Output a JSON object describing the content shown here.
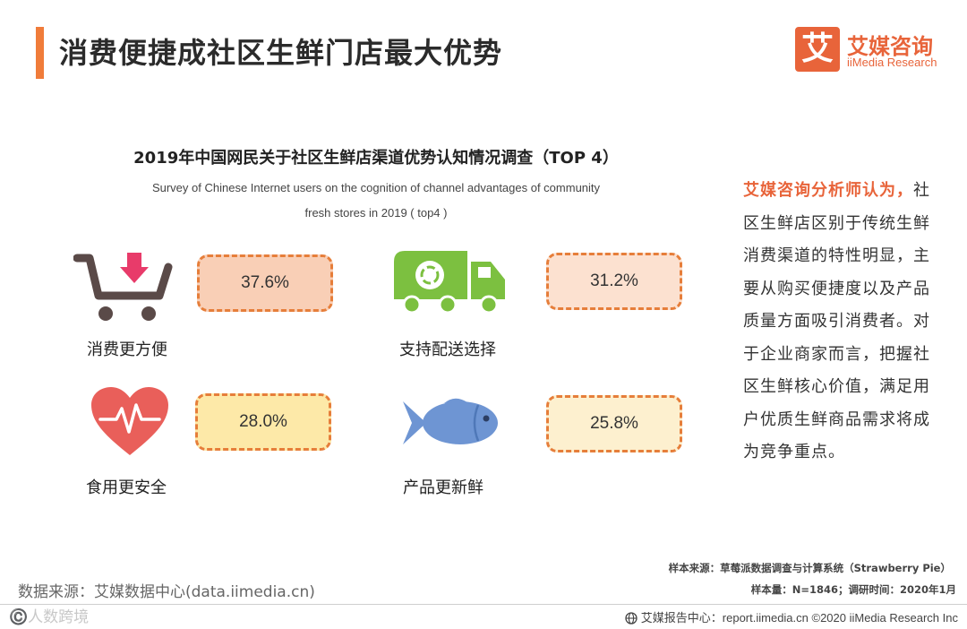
{
  "header": {
    "title": "消费便捷成社区生鲜门店最大优势",
    "logo_mark": "艾",
    "logo_cn": "艾媒咨询",
    "logo_en": "iiMedia Research"
  },
  "chart_data": {
    "type": "table",
    "title": "2019年中国网民关于社区生鲜店渠道优势认知情况调查（TOP 4）",
    "subtitle_line1": "Survey of Chinese Internet users on the cognition of channel advantages of community",
    "subtitle_line2": "fresh stores in 2019 ( top4 )",
    "categories": [
      "消费更方便",
      "支持配送选择",
      "食用更安全",
      "产品更新鲜"
    ],
    "values": [
      37.6,
      31.2,
      28.0,
      25.8
    ],
    "value_labels": [
      "37.6%",
      "31.2%",
      "28.0%",
      "25.8%"
    ],
    "unit": "%",
    "box_fills": [
      "#f9cfb6",
      "#fce1d0",
      "#fde9a8",
      "#fdf0cf"
    ],
    "icons": [
      "shopping-cart-icon",
      "delivery-truck-icon",
      "heart-pulse-icon",
      "fish-icon"
    ]
  },
  "analyst": {
    "head": "艾媒咨询分析师认为，",
    "body": "社区生鲜店区别于传统生鲜消费渠道的特性明显，主要从购买便捷度以及产品质量方面吸引消费者。对于企业商家而言，把握社区生鲜核心价值，满足用户优质生鲜商品需求将成为竞争重点。"
  },
  "sources": {
    "data_source": "数据来源：艾媒数据中心(data.iimedia.cn)",
    "sample_source": "样本来源：草莓派数据调查与计算系统（Strawberry Pie）",
    "sample_size": "样本量：N=1846；调研时间：2020年1月"
  },
  "footer": {
    "text": "艾媒报告中心：report.iimedia.cn  ©2020  iiMedia Research  Inc",
    "watermark": "©️人数跨境"
  },
  "colors": {
    "accent": "#f07c3a",
    "brand": "#e8643a",
    "box_border": "#e67e3a"
  }
}
